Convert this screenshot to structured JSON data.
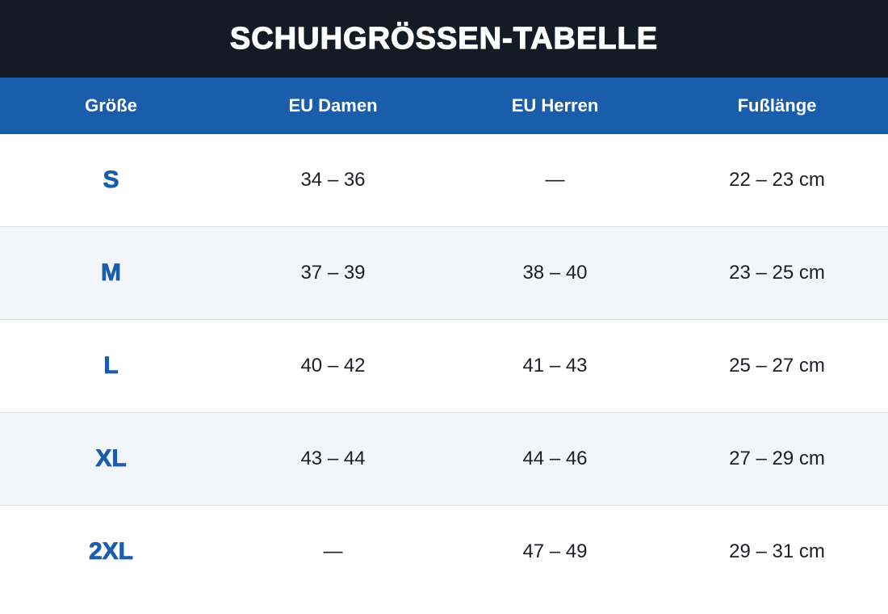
{
  "title": "SCHUHGRÖSSEN-TABELLE",
  "table": {
    "headers": [
      "Größe",
      "EU Damen",
      "EU Herren",
      "Fußlänge"
    ],
    "rows": [
      {
        "size": "S",
        "eu_damen": "34 – 36",
        "eu_herren": "—",
        "fusslaenge": "22 – 23 cm"
      },
      {
        "size": "M",
        "eu_damen": "37 – 39",
        "eu_herren": "38 – 40",
        "fusslaenge": "23 – 25 cm"
      },
      {
        "size": "L",
        "eu_damen": "40 – 42",
        "eu_herren": "41 – 43",
        "fusslaenge": "25 – 27 cm"
      },
      {
        "size": "XL",
        "eu_damen": "43 – 44",
        "eu_herren": "44 – 46",
        "fusslaenge": "27 – 29 cm"
      },
      {
        "size": "2XL",
        "eu_damen": "—",
        "eu_herren": "47 – 49",
        "fusslaenge": "29 – 31 cm"
      }
    ]
  },
  "colors": {
    "title_background": "#141b25",
    "header_background": "#1a5dab",
    "size_text": "#1a5dab",
    "alt_row_background": "#f2f6fa"
  }
}
